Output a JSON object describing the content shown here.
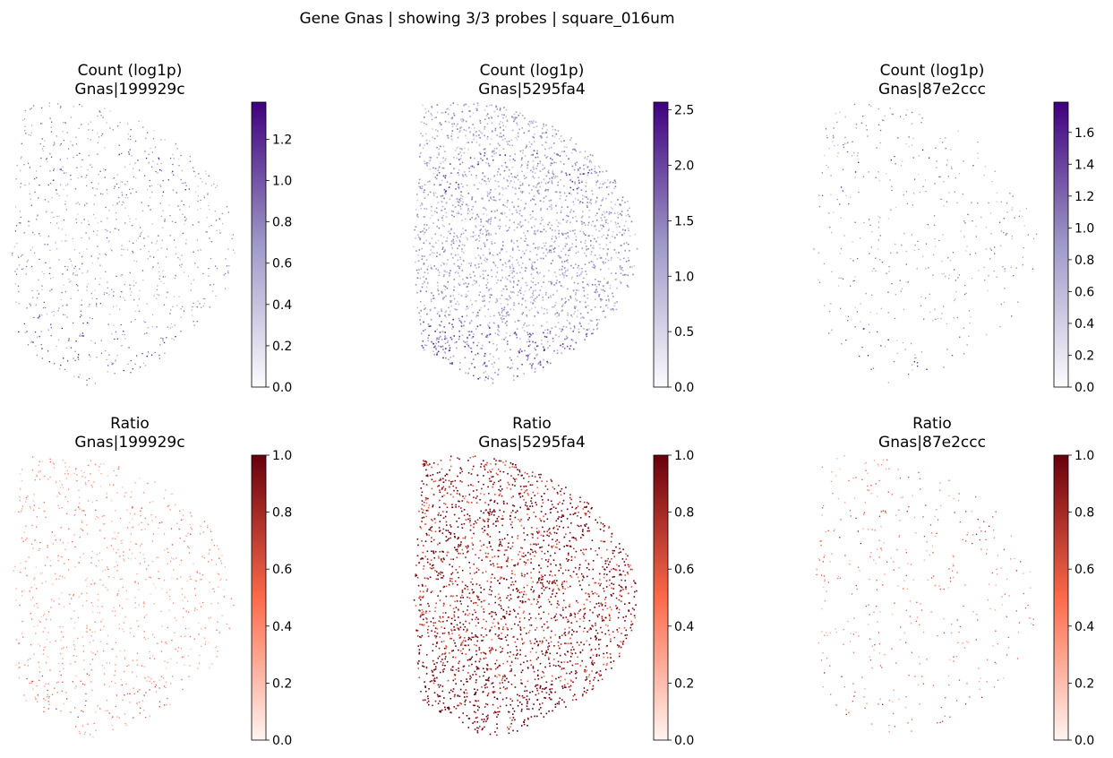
{
  "suptitle": "Gene Gnas | showing 3/3 probes | square_016um",
  "chart_data": [
    {
      "type": "scatter",
      "title_line1": "Count (log1p)",
      "title_line2": "Gnas|199929c",
      "colormap": "Purples",
      "colorbar_range": [
        0,
        1.38
      ],
      "colorbar_ticks": [
        0.0,
        0.2,
        0.4,
        0.6,
        0.8,
        1.0,
        1.2
      ],
      "colorbar_tick_labels": [
        "0.0",
        "0.2",
        "0.4",
        "0.6",
        "0.8",
        "1.0",
        "1.2"
      ],
      "spot_density": "sparse",
      "typical_value": 0.7
    },
    {
      "type": "scatter",
      "title_line1": "Count (log1p)",
      "title_line2": "Gnas|5295fa4",
      "colormap": "Purples",
      "colorbar_range": [
        0,
        2.57
      ],
      "colorbar_ticks": [
        0.0,
        0.5,
        1.0,
        1.5,
        2.0,
        2.5
      ],
      "colorbar_tick_labels": [
        "0.0",
        "0.5",
        "1.0",
        "1.5",
        "2.0",
        "2.5"
      ],
      "spot_density": "dense",
      "typical_value": 1.1
    },
    {
      "type": "scatter",
      "title_line1": "Count (log1p)",
      "title_line2": "Gnas|87e2ccc",
      "colormap": "Purples",
      "colorbar_range": [
        0,
        1.79
      ],
      "colorbar_ticks": [
        0.0,
        0.2,
        0.4,
        0.6,
        0.8,
        1.0,
        1.2,
        1.4,
        1.6
      ],
      "colorbar_tick_labels": [
        "0.0",
        "0.2",
        "0.4",
        "0.6",
        "0.8",
        "1.0",
        "1.2",
        "1.4",
        "1.6"
      ],
      "spot_density": "very sparse",
      "typical_value": 0.9
    },
    {
      "type": "scatter",
      "title_line1": "Ratio",
      "title_line2": "Gnas|199929c",
      "colormap": "Reds",
      "colorbar_range": [
        0,
        1
      ],
      "colorbar_ticks": [
        0.0,
        0.2,
        0.4,
        0.6,
        0.8,
        1.0
      ],
      "colorbar_tick_labels": [
        "0.0",
        "0.2",
        "0.4",
        "0.6",
        "0.8",
        "1.0"
      ],
      "spot_density": "sparse",
      "typical_value": 0.35
    },
    {
      "type": "scatter",
      "title_line1": "Ratio",
      "title_line2": "Gnas|5295fa4",
      "colormap": "Reds",
      "colorbar_range": [
        0,
        1
      ],
      "colorbar_ticks": [
        0.0,
        0.2,
        0.4,
        0.6,
        0.8,
        1.0
      ],
      "colorbar_tick_labels": [
        "0.0",
        "0.2",
        "0.4",
        "0.6",
        "0.8",
        "1.0"
      ],
      "spot_density": "dense",
      "typical_value": 0.9
    },
    {
      "type": "scatter",
      "title_line1": "Ratio",
      "title_line2": "Gnas|87e2ccc",
      "colormap": "Reds",
      "colorbar_range": [
        0,
        1
      ],
      "colorbar_ticks": [
        0.0,
        0.2,
        0.4,
        0.6,
        0.8,
        1.0
      ],
      "colorbar_tick_labels": [
        "0.0",
        "0.2",
        "0.4",
        "0.6",
        "0.8",
        "1.0"
      ],
      "spot_density": "very sparse",
      "typical_value": 0.45
    }
  ],
  "colors": {
    "purples_low": "#fcfbfd",
    "purples_mid": "#9e9ac8",
    "purples_high": "#3f007d",
    "reds_low": "#fff5f0",
    "reds_mid": "#fb6a4a",
    "reds_high": "#67000d"
  }
}
